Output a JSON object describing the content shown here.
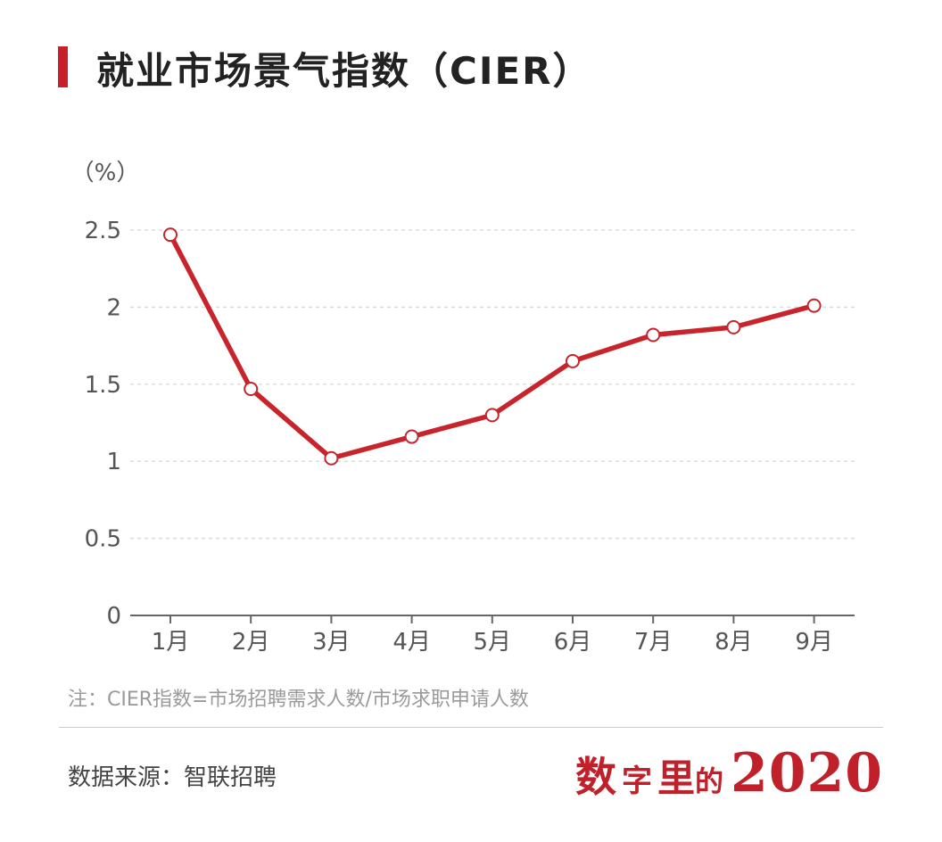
{
  "title": "就业市场景气指数（CIER）",
  "chart_data": {
    "type": "line",
    "title": "就业市场景气指数（CIER）",
    "ylabel": "（%）",
    "xlabel": "",
    "categories": [
      "1月",
      "2月",
      "3月",
      "4月",
      "5月",
      "6月",
      "7月",
      "8月",
      "9月"
    ],
    "values": [
      2.47,
      1.47,
      1.02,
      1.16,
      1.3,
      1.65,
      1.82,
      1.87,
      2.01
    ],
    "yticks": [
      "0",
      "0.5",
      "1",
      "1.5",
      "2",
      "2.5"
    ],
    "ylim": [
      0,
      2.5
    ],
    "grid": true,
    "legend": "none",
    "line_color": "#c8242c",
    "marker_fill": "#ffffff"
  },
  "note": "注：CIER指数=市场招聘需求人数/市场求职申请人数",
  "source": "数据来源：智联招聘",
  "brand": {
    "c1": "数",
    "c2": "字",
    "c3": "里",
    "c4": "的",
    "year": "2020",
    "color": "#c0202a"
  }
}
